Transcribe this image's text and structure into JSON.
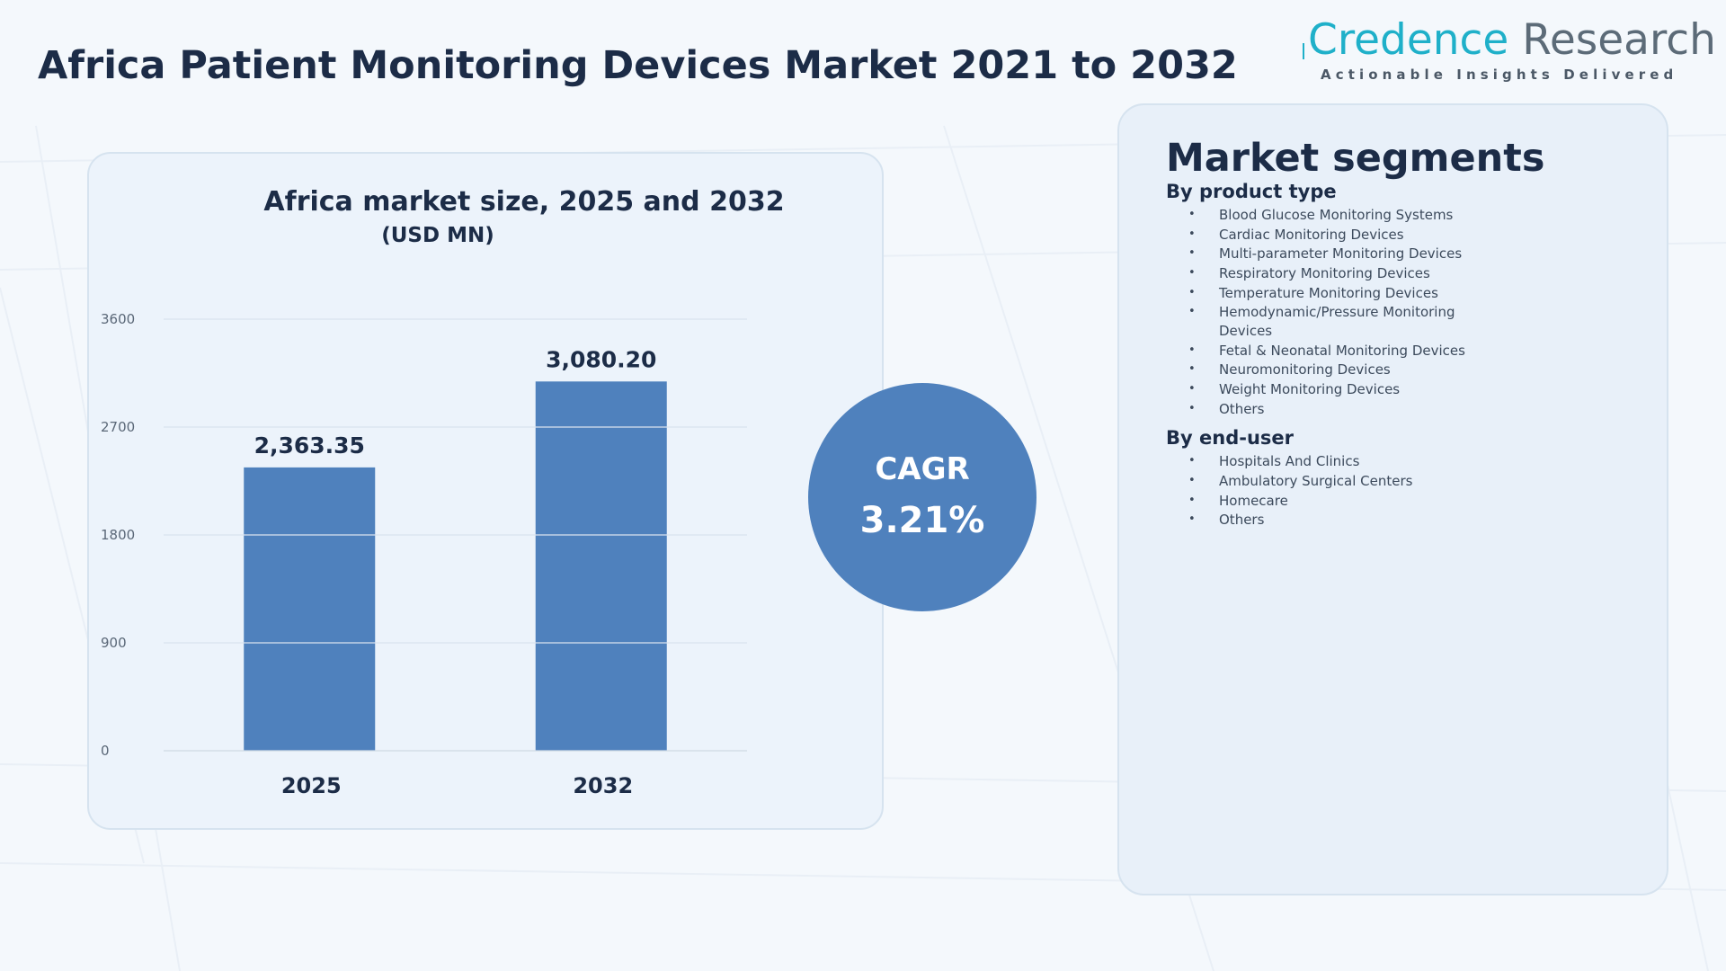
{
  "page": {
    "title": "Africa Patient Monitoring Devices Market 2021 to 2032"
  },
  "brand": {
    "name_part1": "Credence",
    "name_part2": "Research",
    "tagline": "Actionable Insights Delivered"
  },
  "chart_data": {
    "type": "bar",
    "title": "Africa market size, 2025 and 2032",
    "subtitle": "(USD MN)",
    "categories": [
      "2025",
      "2032"
    ],
    "values": [
      2363.35,
      3080.2
    ],
    "value_labels": [
      "2,363.35",
      "3,080.20"
    ],
    "ylim": [
      0,
      3600
    ],
    "yticks": [
      "0",
      "900",
      "1800",
      "2700",
      "3600"
    ],
    "xlabel": "",
    "ylabel": "",
    "grid": true,
    "bar_color": "#4f81bd"
  },
  "cagr": {
    "label": "CAGR",
    "value": "3.21%"
  },
  "segments": {
    "title": "Market segments",
    "groups": [
      {
        "heading": "By product type",
        "items": [
          "Blood Glucose Monitoring Systems",
          "Cardiac Monitoring Devices",
          "Multi-parameter Monitoring Devices",
          "Respiratory Monitoring Devices",
          "Temperature Monitoring Devices",
          "Hemodynamic/Pressure Monitoring Devices",
          "Fetal & Neonatal Monitoring Devices",
          "Neuromonitoring Devices",
          "Weight Monitoring Devices",
          "Others"
        ]
      },
      {
        "heading": "By end-user",
        "items": [
          "Hospitals And Clinics",
          "Ambulatory Surgical Centers",
          "Homecare",
          "Others"
        ]
      }
    ]
  },
  "colors": {
    "title": "#1c2c47",
    "accent": "#4f81bd",
    "brand_teal": "#1fb0c9",
    "brand_gray": "#5c6b78"
  }
}
